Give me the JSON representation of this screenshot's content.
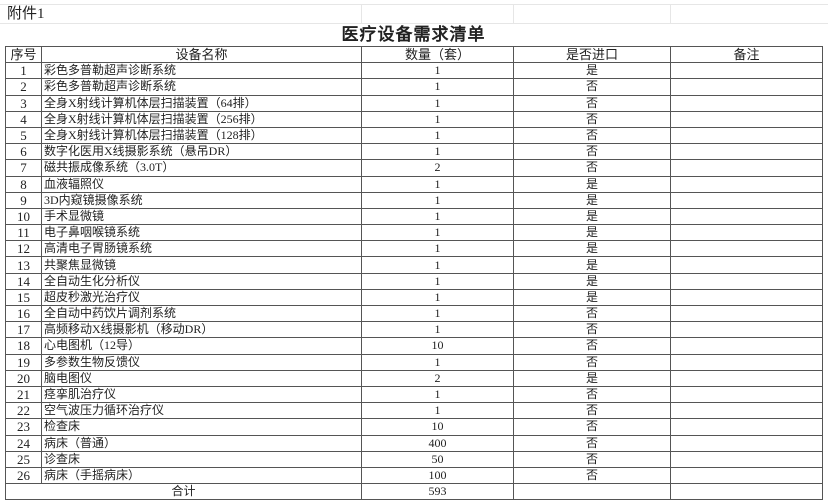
{
  "attachment_label": "附件1",
  "title": "医疗设备需求清单",
  "headers": {
    "seq": "序号",
    "name": "设备名称",
    "qty": "数量（套）",
    "imported": "是否进口",
    "remark": "备注"
  },
  "rows": [
    {
      "seq": "1",
      "name": "彩色多普勒超声诊断系统",
      "qty": "1",
      "imported": "是",
      "remark": ""
    },
    {
      "seq": "2",
      "name": "彩色多普勒超声诊断系统",
      "qty": "1",
      "imported": "否",
      "remark": ""
    },
    {
      "seq": "3",
      "name": "全身X射线计算机体层扫描装置（64排）",
      "qty": "1",
      "imported": "否",
      "remark": ""
    },
    {
      "seq": "4",
      "name": "全身X射线计算机体层扫描装置（256排）",
      "qty": "1",
      "imported": "否",
      "remark": ""
    },
    {
      "seq": "5",
      "name": "全身X射线计算机体层扫描装置（128排）",
      "qty": "1",
      "imported": "否",
      "remark": ""
    },
    {
      "seq": "6",
      "name": "数字化医用X线摄影系统（悬吊DR）",
      "qty": "1",
      "imported": "否",
      "remark": ""
    },
    {
      "seq": "7",
      "name": "磁共振成像系统（3.0T）",
      "qty": "2",
      "imported": "否",
      "remark": ""
    },
    {
      "seq": "8",
      "name": "血液辐照仪",
      "qty": "1",
      "imported": "是",
      "remark": ""
    },
    {
      "seq": "9",
      "name": "3D内窥镜摄像系统",
      "qty": "1",
      "imported": "是",
      "remark": ""
    },
    {
      "seq": "10",
      "name": "手术显微镜",
      "qty": "1",
      "imported": "是",
      "remark": ""
    },
    {
      "seq": "11",
      "name": "电子鼻咽喉镜系统",
      "qty": "1",
      "imported": "是",
      "remark": ""
    },
    {
      "seq": "12",
      "name": "高清电子胃肠镜系统",
      "qty": "1",
      "imported": "是",
      "remark": ""
    },
    {
      "seq": "13",
      "name": "共聚焦显微镜",
      "qty": "1",
      "imported": "是",
      "remark": ""
    },
    {
      "seq": "14",
      "name": "全自动生化分析仪",
      "qty": "1",
      "imported": "是",
      "remark": ""
    },
    {
      "seq": "15",
      "name": "超皮秒激光治疗仪",
      "qty": "1",
      "imported": "是",
      "remark": ""
    },
    {
      "seq": "16",
      "name": "全自动中药饮片调剂系统",
      "qty": "1",
      "imported": "否",
      "remark": ""
    },
    {
      "seq": "17",
      "name": "高频移动X线摄影机（移动DR）",
      "qty": "1",
      "imported": "否",
      "remark": ""
    },
    {
      "seq": "18",
      "name": "心电图机（12导）",
      "qty": "10",
      "imported": "否",
      "remark": ""
    },
    {
      "seq": "19",
      "name": "多参数生物反馈仪",
      "qty": "1",
      "imported": "否",
      "remark": ""
    },
    {
      "seq": "20",
      "name": "脑电图仪",
      "qty": "2",
      "imported": "是",
      "remark": ""
    },
    {
      "seq": "21",
      "name": "痉挛肌治疗仪",
      "qty": "1",
      "imported": "否",
      "remark": ""
    },
    {
      "seq": "22",
      "name": "空气波压力循环治疗仪",
      "qty": "1",
      "imported": "否",
      "remark": ""
    },
    {
      "seq": "23",
      "name": "检查床",
      "qty": "10",
      "imported": "否",
      "remark": ""
    },
    {
      "seq": "24",
      "name": "病床（普通）",
      "qty": "400",
      "imported": "否",
      "remark": ""
    },
    {
      "seq": "25",
      "name": "诊查床",
      "qty": "50",
      "imported": "否",
      "remark": ""
    },
    {
      "seq": "26",
      "name": "病床（手摇病床）",
      "qty": "100",
      "imported": "否",
      "remark": ""
    }
  ],
  "total": {
    "label": "合计",
    "qty": "593"
  }
}
